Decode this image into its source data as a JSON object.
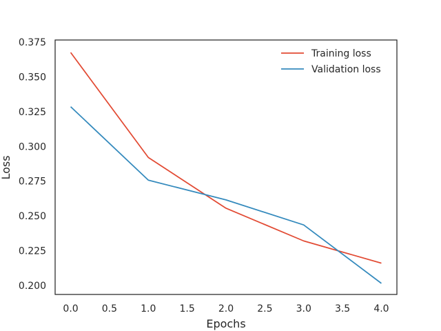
{
  "chart_data": {
    "type": "line",
    "title": "",
    "xlabel": "Epochs",
    "ylabel": "Loss",
    "x": [
      0,
      1,
      2,
      3,
      4
    ],
    "series": [
      {
        "name": "Training loss",
        "color": "#e24a33",
        "values": [
          0.3675,
          0.292,
          0.2555,
          0.232,
          0.216
        ]
      },
      {
        "name": "Validation loss",
        "color": "#348abd",
        "values": [
          0.3285,
          0.2757,
          0.2615,
          0.2435,
          0.2015
        ]
      }
    ],
    "xlim": [
      -0.2,
      4.2
    ],
    "ylim": [
      0.1935,
      0.3765
    ],
    "xticks": [
      0.0,
      0.5,
      1.0,
      1.5,
      2.0,
      2.5,
      3.0,
      3.5,
      4.0
    ],
    "xtick_labels": [
      "0.0",
      "0.5",
      "1.0",
      "1.5",
      "2.0",
      "2.5",
      "3.0",
      "3.5",
      "4.0"
    ],
    "yticks": [
      0.2,
      0.225,
      0.25,
      0.275,
      0.3,
      0.325,
      0.35,
      0.375
    ],
    "ytick_labels": [
      "0.200",
      "0.225",
      "0.250",
      "0.275",
      "0.300",
      "0.325",
      "0.350",
      "0.375"
    ],
    "grid": false,
    "legend_position": "upper right"
  }
}
